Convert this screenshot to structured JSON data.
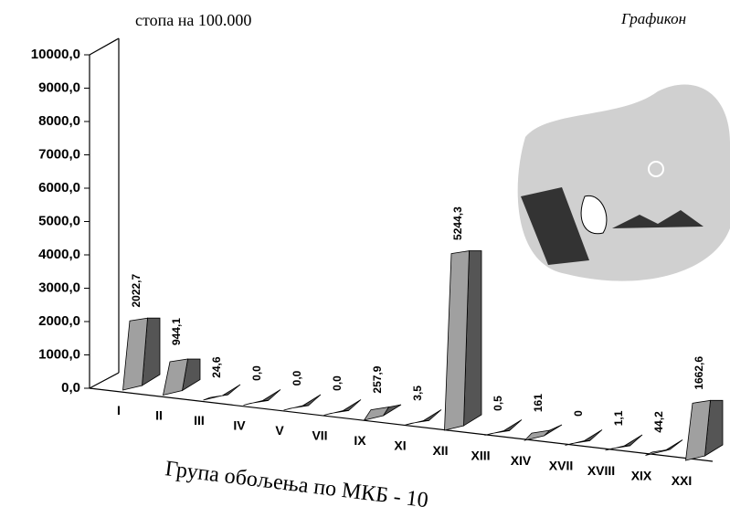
{
  "chart_data": {
    "type": "bar3d",
    "title": "Графикон",
    "y_label": "стопа на 100.000",
    "x_label": "Група обољења по МКБ - 10",
    "categories": [
      "I",
      "II",
      "III",
      "IV",
      "V",
      "VII",
      "IX",
      "XI",
      "XII",
      "XIII",
      "XIV",
      "XVII",
      "XVIII",
      "XIX",
      "XXI"
    ],
    "values": [
      2022.7,
      944.1,
      24.6,
      0.0,
      0.0,
      0.0,
      257.9,
      3.5,
      5244.3,
      0.5,
      161,
      0,
      1.1,
      44.2,
      1662.6
    ],
    "value_labels": [
      "2022,7",
      "944,1",
      "24,6",
      "0,0",
      "0,0",
      "0,0",
      "257,9",
      "3,5",
      "5244,3",
      "0,5",
      "161",
      "0",
      "1,1",
      "44,2",
      "1662,6"
    ],
    "color": "#a0a0a0",
    "ylim": [
      0,
      10000
    ],
    "yticks": [
      {
        "value": 0,
        "label": "0,0"
      },
      {
        "value": 1000,
        "label": "1000,0"
      },
      {
        "value": 2000,
        "label": "2000,0"
      },
      {
        "value": 3000,
        "label": "3000,0"
      },
      {
        "value": 4000,
        "label": "4000,0"
      },
      {
        "value": 5000,
        "label": "5000,0"
      },
      {
        "value": 6000,
        "label": "6000,0"
      },
      {
        "value": 7000,
        "label": "7000,0"
      },
      {
        "value": 8000,
        "label": "8000,0"
      },
      {
        "value": 9000,
        "label": "9000,0"
      },
      {
        "value": 10000,
        "label": "10000,0"
      }
    ]
  }
}
